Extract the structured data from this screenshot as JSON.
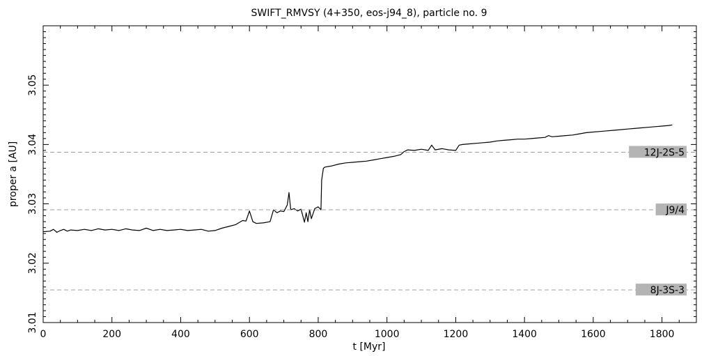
{
  "chart_data": {
    "type": "line",
    "title": "SWIFT_RMVSY (4+350, eos-j94_8), particle no. 9",
    "xlabel": "t [Myr]",
    "ylabel": "proper a [AU]",
    "xlim": [
      0,
      1900
    ],
    "ylim": [
      3.01,
      3.06
    ],
    "xticks": [
      "0",
      "200",
      "400",
      "600",
      "800",
      "1000",
      "1200",
      "1400",
      "1600",
      "1800"
    ],
    "yticks": [
      "3.01",
      "3.02",
      "3.03",
      "3.04",
      "3.05"
    ],
    "grid": false,
    "resonances": [
      {
        "label": "12J-2S-5",
        "a": 3.0387
      },
      {
        "label": "J9/4",
        "a": 3.029
      },
      {
        "label": "8J-3S-3",
        "a": 3.0155
      }
    ],
    "series": [
      {
        "x": [
          0,
          20,
          30,
          40,
          50,
          60,
          70,
          80,
          100,
          120,
          140,
          160,
          180,
          200,
          220,
          240,
          260,
          280,
          300,
          320,
          340,
          360,
          380,
          400,
          420,
          440,
          460,
          480,
          500,
          520,
          540,
          560,
          580,
          590,
          600,
          610,
          620,
          640,
          660,
          670,
          680,
          690,
          700,
          710,
          715,
          720,
          730,
          740,
          750,
          760,
          765,
          770,
          775,
          780,
          790,
          800,
          808,
          810,
          815,
          820,
          840,
          860,
          880,
          900,
          920,
          940,
          960,
          980,
          1000,
          1020,
          1040,
          1050,
          1060,
          1080,
          1100,
          1120,
          1130,
          1140,
          1160,
          1180,
          1200,
          1210,
          1220,
          1240,
          1260,
          1280,
          1300,
          1320,
          1340,
          1360,
          1380,
          1400,
          1420,
          1440,
          1460,
          1470,
          1480,
          1500,
          1520,
          1540,
          1560,
          1580,
          1600,
          1620,
          1640,
          1660,
          1680,
          1700,
          1720,
          1740,
          1760,
          1780,
          1800,
          1820,
          1830
        ],
        "y": [
          3.0253,
          3.0254,
          3.0257,
          3.0252,
          3.0255,
          3.0257,
          3.0254,
          3.0256,
          3.0255,
          3.0257,
          3.0255,
          3.0258,
          3.0256,
          3.0257,
          3.0255,
          3.0258,
          3.0256,
          3.0255,
          3.0259,
          3.0255,
          3.0257,
          3.0255,
          3.0256,
          3.0257,
          3.0255,
          3.0256,
          3.0257,
          3.0254,
          3.0255,
          3.0259,
          3.0262,
          3.0265,
          3.0272,
          3.0271,
          3.0288,
          3.027,
          3.0267,
          3.0268,
          3.027,
          3.029,
          3.0285,
          3.0288,
          3.0287,
          3.0298,
          3.0319,
          3.029,
          3.0292,
          3.0288,
          3.0291,
          3.0269,
          3.0285,
          3.027,
          3.029,
          3.0275,
          3.0292,
          3.0295,
          3.029,
          3.034,
          3.036,
          3.0362,
          3.0364,
          3.0367,
          3.0369,
          3.037,
          3.0371,
          3.0372,
          3.0374,
          3.0376,
          3.0378,
          3.038,
          3.0383,
          3.0388,
          3.0391,
          3.039,
          3.0392,
          3.039,
          3.0399,
          3.0391,
          3.0393,
          3.0391,
          3.039,
          3.0399,
          3.04,
          3.0401,
          3.0402,
          3.0403,
          3.0404,
          3.0406,
          3.0407,
          3.0408,
          3.0409,
          3.0409,
          3.041,
          3.0411,
          3.0412,
          3.0415,
          3.0413,
          3.0414,
          3.0415,
          3.0416,
          3.0418,
          3.042,
          3.0421,
          3.0422,
          3.0423,
          3.0424,
          3.0425,
          3.0426,
          3.0427,
          3.0428,
          3.0429,
          3.043,
          3.0431,
          3.0432,
          3.0433
        ]
      }
    ]
  }
}
